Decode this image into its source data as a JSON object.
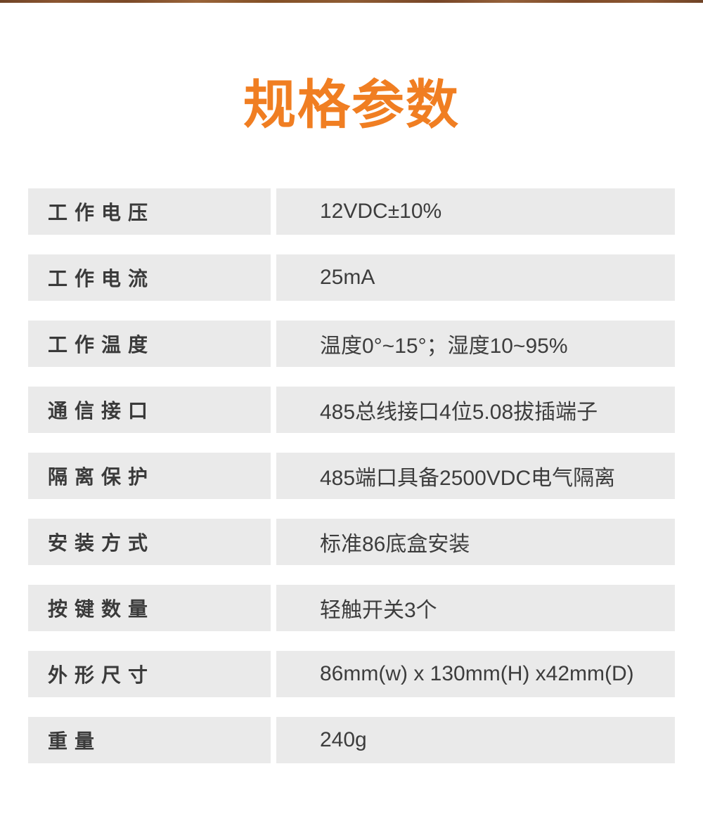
{
  "page": {
    "title": "规格参数",
    "accent_color": "#f07e22",
    "row_background_color": "#eaeaea",
    "text_color": "#3a3a3a",
    "top_strip_color": "#8a5530"
  },
  "specs": {
    "rows": [
      {
        "label": "工作电压",
        "value": "12VDC±10%"
      },
      {
        "label": "工作电流",
        "value": "25mA"
      },
      {
        "label": "工作温度",
        "value": "温度0°~15°；湿度10~95%"
      },
      {
        "label": "通信接口",
        "value": "485总线接口4位5.08拔插端子"
      },
      {
        "label": "隔离保护",
        "value": "485端口具备2500VDC电气隔离"
      },
      {
        "label": "安装方式",
        "value": "标准86底盒安装"
      },
      {
        "label": "按键数量",
        "value": "轻触开关3个"
      },
      {
        "label": "外形尺寸",
        "value": "86mm(w) x 130mm(H) x42mm(D)"
      },
      {
        "label": "重量",
        "value": "240g"
      }
    ]
  }
}
